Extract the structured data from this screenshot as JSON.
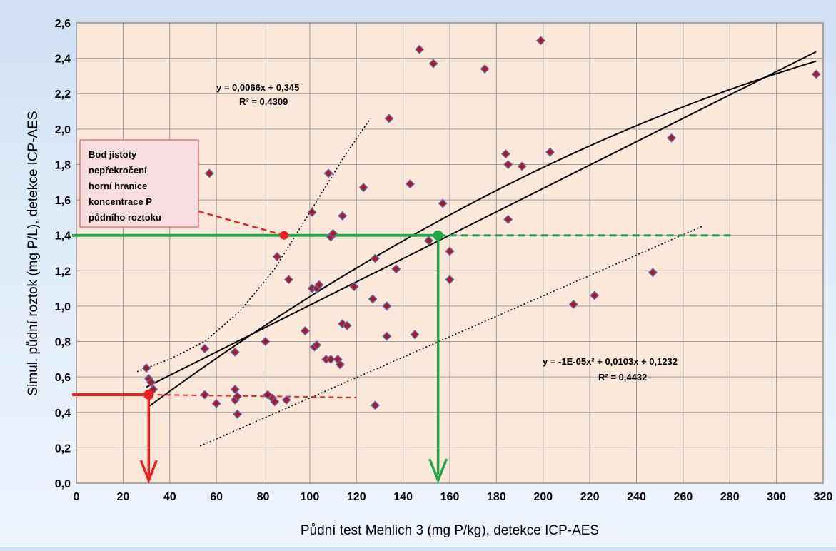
{
  "chart_data": {
    "type": "scatter",
    "xlabel": "Půdní test Mehlich 3 (mg P/kg), detekce ICP-AES",
    "ylabel": "Simul. půdní roztok (mg P/L), detekce ICP-AES",
    "xlim": [
      0,
      320
    ],
    "ylim": [
      0,
      2.6
    ],
    "x_ticks": [
      "0",
      "20",
      "40",
      "60",
      "80",
      "100",
      "120",
      "140",
      "160",
      "180",
      "200",
      "220",
      "240",
      "260",
      "280",
      "300",
      "320"
    ],
    "y_ticks": [
      "0,0",
      "0,2",
      "0,4",
      "0,6",
      "0,8",
      "1,0",
      "1,2",
      "1,4",
      "1,6",
      "1,8",
      "2,0",
      "2,2",
      "2,4",
      "2,6"
    ],
    "grid": true,
    "colors": {
      "plot_bg": "#fce8d8",
      "grid": "#9a9a9a",
      "marker": "#b01820",
      "marker_edge": "#5a6ab0",
      "red": "#f02020",
      "green": "#22a84a"
    },
    "points": [
      {
        "x": 30,
        "y": 0.65
      },
      {
        "x": 31,
        "y": 0.59
      },
      {
        "x": 32,
        "y": 0.57
      },
      {
        "x": 33,
        "y": 0.53
      },
      {
        "x": 55,
        "y": 0.76
      },
      {
        "x": 55,
        "y": 0.5
      },
      {
        "x": 57,
        "y": 1.75
      },
      {
        "x": 60,
        "y": 0.45
      },
      {
        "x": 68,
        "y": 0.74
      },
      {
        "x": 68,
        "y": 0.53
      },
      {
        "x": 68,
        "y": 0.47
      },
      {
        "x": 69,
        "y": 0.49
      },
      {
        "x": 69,
        "y": 0.39
      },
      {
        "x": 81,
        "y": 0.8
      },
      {
        "x": 82,
        "y": 0.5
      },
      {
        "x": 84,
        "y": 0.48
      },
      {
        "x": 85,
        "y": 0.46
      },
      {
        "x": 86,
        "y": 1.28
      },
      {
        "x": 90,
        "y": 0.47
      },
      {
        "x": 91,
        "y": 1.15
      },
      {
        "x": 98,
        "y": 0.86
      },
      {
        "x": 101,
        "y": 1.1
      },
      {
        "x": 101,
        "y": 1.53
      },
      {
        "x": 102,
        "y": 0.77
      },
      {
        "x": 103,
        "y": 1.1
      },
      {
        "x": 103,
        "y": 0.78
      },
      {
        "x": 104,
        "y": 1.12
      },
      {
        "x": 107,
        "y": 0.7
      },
      {
        "x": 108,
        "y": 1.75
      },
      {
        "x": 109,
        "y": 0.7
      },
      {
        "x": 109,
        "y": 1.39
      },
      {
        "x": 110,
        "y": 1.41
      },
      {
        "x": 112,
        "y": 0.7
      },
      {
        "x": 113,
        "y": 0.67
      },
      {
        "x": 114,
        "y": 1.51
      },
      {
        "x": 114,
        "y": 0.9
      },
      {
        "x": 116,
        "y": 0.89
      },
      {
        "x": 119,
        "y": 1.11
      },
      {
        "x": 123,
        "y": 1.67
      },
      {
        "x": 127,
        "y": 1.04
      },
      {
        "x": 128,
        "y": 1.27
      },
      {
        "x": 128,
        "y": 0.44
      },
      {
        "x": 133,
        "y": 1.0
      },
      {
        "x": 133,
        "y": 0.83
      },
      {
        "x": 134,
        "y": 2.06
      },
      {
        "x": 137,
        "y": 1.21
      },
      {
        "x": 143,
        "y": 1.69
      },
      {
        "x": 145,
        "y": 0.84
      },
      {
        "x": 147,
        "y": 2.45
      },
      {
        "x": 151,
        "y": 1.37
      },
      {
        "x": 153,
        "y": 2.37
      },
      {
        "x": 157,
        "y": 1.58
      },
      {
        "x": 160,
        "y": 1.31
      },
      {
        "x": 160,
        "y": 1.15
      },
      {
        "x": 175,
        "y": 2.34
      },
      {
        "x": 184,
        "y": 1.86
      },
      {
        "x": 185,
        "y": 1.8
      },
      {
        "x": 185,
        "y": 1.49
      },
      {
        "x": 191,
        "y": 1.79
      },
      {
        "x": 199,
        "y": 2.5
      },
      {
        "x": 203,
        "y": 1.87
      },
      {
        "x": 213,
        "y": 1.01
      },
      {
        "x": 222,
        "y": 1.06
      },
      {
        "x": 247,
        "y": 1.19
      },
      {
        "x": 255,
        "y": 1.95
      },
      {
        "x": 317,
        "y": 2.31
      }
    ],
    "linear_fit": {
      "slope": 0.0066,
      "intercept": 0.345,
      "x_range": [
        30,
        317
      ]
    },
    "quadratic_fit": {
      "a": -1e-05,
      "b": 0.0103,
      "c": 0.1232,
      "x_range": [
        31,
        317
      ]
    },
    "lower_dotted": {
      "x_range": [
        53,
        268
      ],
      "y_range": [
        0.21,
        1.45
      ]
    },
    "upper_dotted": {
      "points": [
        [
          26,
          0.63
        ],
        [
          40,
          0.7
        ],
        [
          55,
          0.8
        ],
        [
          70,
          0.97
        ],
        [
          85,
          1.21
        ],
        [
          100,
          1.53
        ],
        [
          115,
          1.85
        ],
        [
          126,
          2.06
        ]
      ]
    },
    "annotations": {
      "linear_eq": "y = 0,0066x + 0,345",
      "linear_r2": "R² = 0,4309",
      "quad_eq": "y = -1E-05x² + 0,0103x + 0,1232",
      "quad_r2": "R² = 0,4432",
      "callout_lines": [
        "Bod jistoty",
        "nepřekročení",
        "horní hranice",
        "koncentrace P",
        "půdního roztoku"
      ]
    },
    "red_marker": {
      "x": 31,
      "y": 0.5,
      "line_end_x": 120
    },
    "red_circle_point": {
      "x": 89,
      "y": 1.4
    },
    "green_marker": {
      "x": 155,
      "y": 1.4,
      "line_end_x": 282
    }
  }
}
